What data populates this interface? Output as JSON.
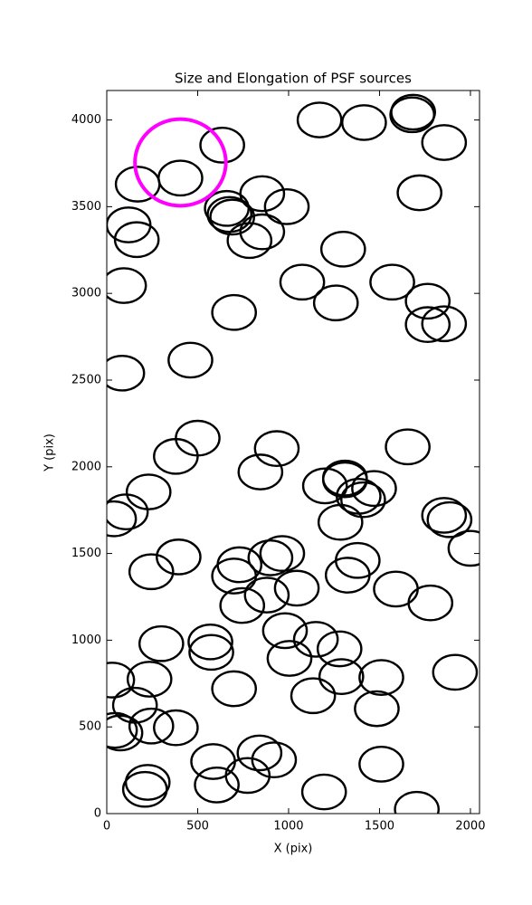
{
  "chart_data": {
    "type": "scatter",
    "title": "Size and Elongation of PSF sources",
    "x_label": "X (pix)",
    "y_label": "Y (pix)",
    "xlim": [
      0,
      2050
    ],
    "ylim": [
      0,
      4170
    ],
    "xticks": [
      0,
      500,
      1000,
      1500,
      2000
    ],
    "yticks": [
      0,
      500,
      1000,
      1500,
      2000,
      2500,
      3000,
      3500,
      4000
    ],
    "grid": false,
    "series": [
      {
        "color": "#000000",
        "width": 240,
        "height": 200,
        "x": [
          1170,
          1415,
          1685,
          1680,
          1855,
          635,
          405,
          170,
          1720,
          855,
          990,
          660,
          675,
          690,
          120,
          855,
          165,
          785,
          1300,
          1075,
          95,
          1570,
          1260,
          1765,
          1765,
          1855,
          700,
          460,
          85,
          500,
          380,
          935,
          1655,
          845,
          1200,
          1310,
          1310,
          1470,
          1385,
          1410,
          230,
          105,
          40,
          1285,
          1855,
          1885,
          2000,
          395,
          245,
          730,
          900,
          965,
          1380,
          700,
          1325,
          880,
          1045,
          1590,
          745,
          1780,
          980,
          1150,
          570,
          300,
          575,
          1280,
          1005,
          30,
          235,
          1290,
          1510,
          1915,
          700,
          1135,
          155,
          1485,
          245,
          380,
          45,
          75,
          840,
          920,
          585,
          1510,
          775,
          225,
          605,
          210,
          1195,
          1705
        ],
        "y": [
          4000,
          3985,
          4045,
          4030,
          3870,
          3855,
          3665,
          3630,
          3580,
          3575,
          3500,
          3490,
          3455,
          3440,
          3395,
          3355,
          3310,
          3305,
          3255,
          3065,
          3045,
          3065,
          2945,
          2955,
          2820,
          2825,
          2890,
          2615,
          2540,
          2165,
          2060,
          2105,
          2115,
          1970,
          1890,
          1925,
          1935,
          1875,
          1830,
          1810,
          1855,
          1740,
          1700,
          1680,
          1720,
          1695,
          1530,
          1480,
          1395,
          1435,
          1475,
          1500,
          1460,
          1370,
          1375,
          1260,
          1300,
          1295,
          1200,
          1215,
          1055,
          1005,
          990,
          980,
          930,
          950,
          895,
          770,
          775,
          790,
          785,
          815,
          720,
          680,
          625,
          605,
          505,
          495,
          480,
          465,
          350,
          310,
          300,
          285,
          220,
          180,
          165,
          140,
          125,
          25
        ]
      },
      {
        "color": "#ff00ff",
        "width": 500,
        "height": 500,
        "x": [
          405
        ],
        "y": [
          3755
        ]
      }
    ]
  }
}
